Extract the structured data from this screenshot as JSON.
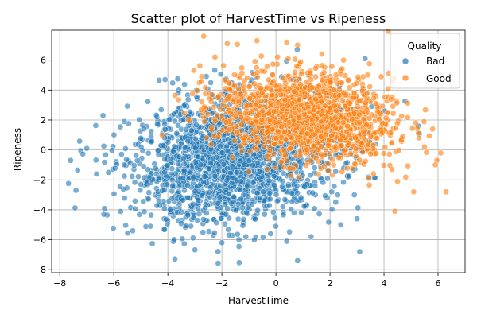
{
  "chart_data": {
    "type": "scatter",
    "title": "Scatter plot of HarvestTime vs Ripeness",
    "xlabel": "HarvestTime",
    "ylabel": "Ripeness",
    "xlim": [
      -8.3,
      7.0
    ],
    "ylim": [
      -8.2,
      8.0
    ],
    "x_ticks": [
      -8,
      -6,
      -4,
      -2,
      0,
      2,
      4,
      6
    ],
    "y_ticks": [
      -8,
      -6,
      -4,
      -2,
      0,
      2,
      4,
      6
    ],
    "grid": true,
    "legend": {
      "title": "Quality",
      "position": "top-right"
    },
    "series": [
      {
        "name": "Bad",
        "color": "#1f77b4",
        "distribution": {
          "mean_x": -1.5,
          "sd_x": 1.9,
          "mean_y": -0.6,
          "sd_y": 2.1,
          "rho": 0.2,
          "count": 2000
        },
        "points": [
          [
            -7.6,
            -0.7
          ],
          [
            -7.4,
            -2.7
          ],
          [
            -7.0,
            0.1
          ],
          [
            -6.4,
            2.3
          ],
          [
            -5.3,
            -5.4
          ],
          [
            -5.0,
            -2.3
          ],
          [
            -4.9,
            -1.1
          ],
          [
            -4.1,
            4.7
          ],
          [
            -2.7,
            -5.5
          ],
          [
            -2.0,
            -6.2
          ],
          [
            -0.8,
            -6.0
          ],
          [
            -0.2,
            -5.6
          ],
          [
            0.4,
            -6.1
          ],
          [
            0.8,
            -7.4
          ],
          [
            1.3,
            -5.8
          ],
          [
            2.4,
            -5.0
          ],
          [
            3.0,
            -4.6
          ],
          [
            3.1,
            -6.8
          ],
          [
            3.3,
            6.1
          ],
          [
            2.9,
            -3.0
          ]
        ]
      },
      {
        "name": "Good",
        "color": "#ff7f0e",
        "distribution": {
          "mean_x": 1.1,
          "sd_x": 1.6,
          "mean_y": 2.2,
          "sd_y": 1.5,
          "rho": -0.2,
          "count": 1500
        },
        "points": [
          [
            -1.8,
            7.1
          ],
          [
            -0.7,
            7.3
          ],
          [
            0.4,
            7.2
          ],
          [
            0.8,
            7.0
          ],
          [
            1.7,
            6.4
          ],
          [
            2.5,
            6.0
          ],
          [
            3.9,
            4.9
          ],
          [
            4.5,
            -2.1
          ],
          [
            4.4,
            -4.1
          ],
          [
            5.1,
            -2.8
          ],
          [
            5.5,
            0.2
          ],
          [
            5.8,
            1.4
          ],
          [
            5.9,
            -1.0
          ],
          [
            6.1,
            -0.2
          ],
          [
            6.3,
            -2.8
          ],
          [
            4.3,
            -1.3
          ]
        ]
      }
    ]
  }
}
